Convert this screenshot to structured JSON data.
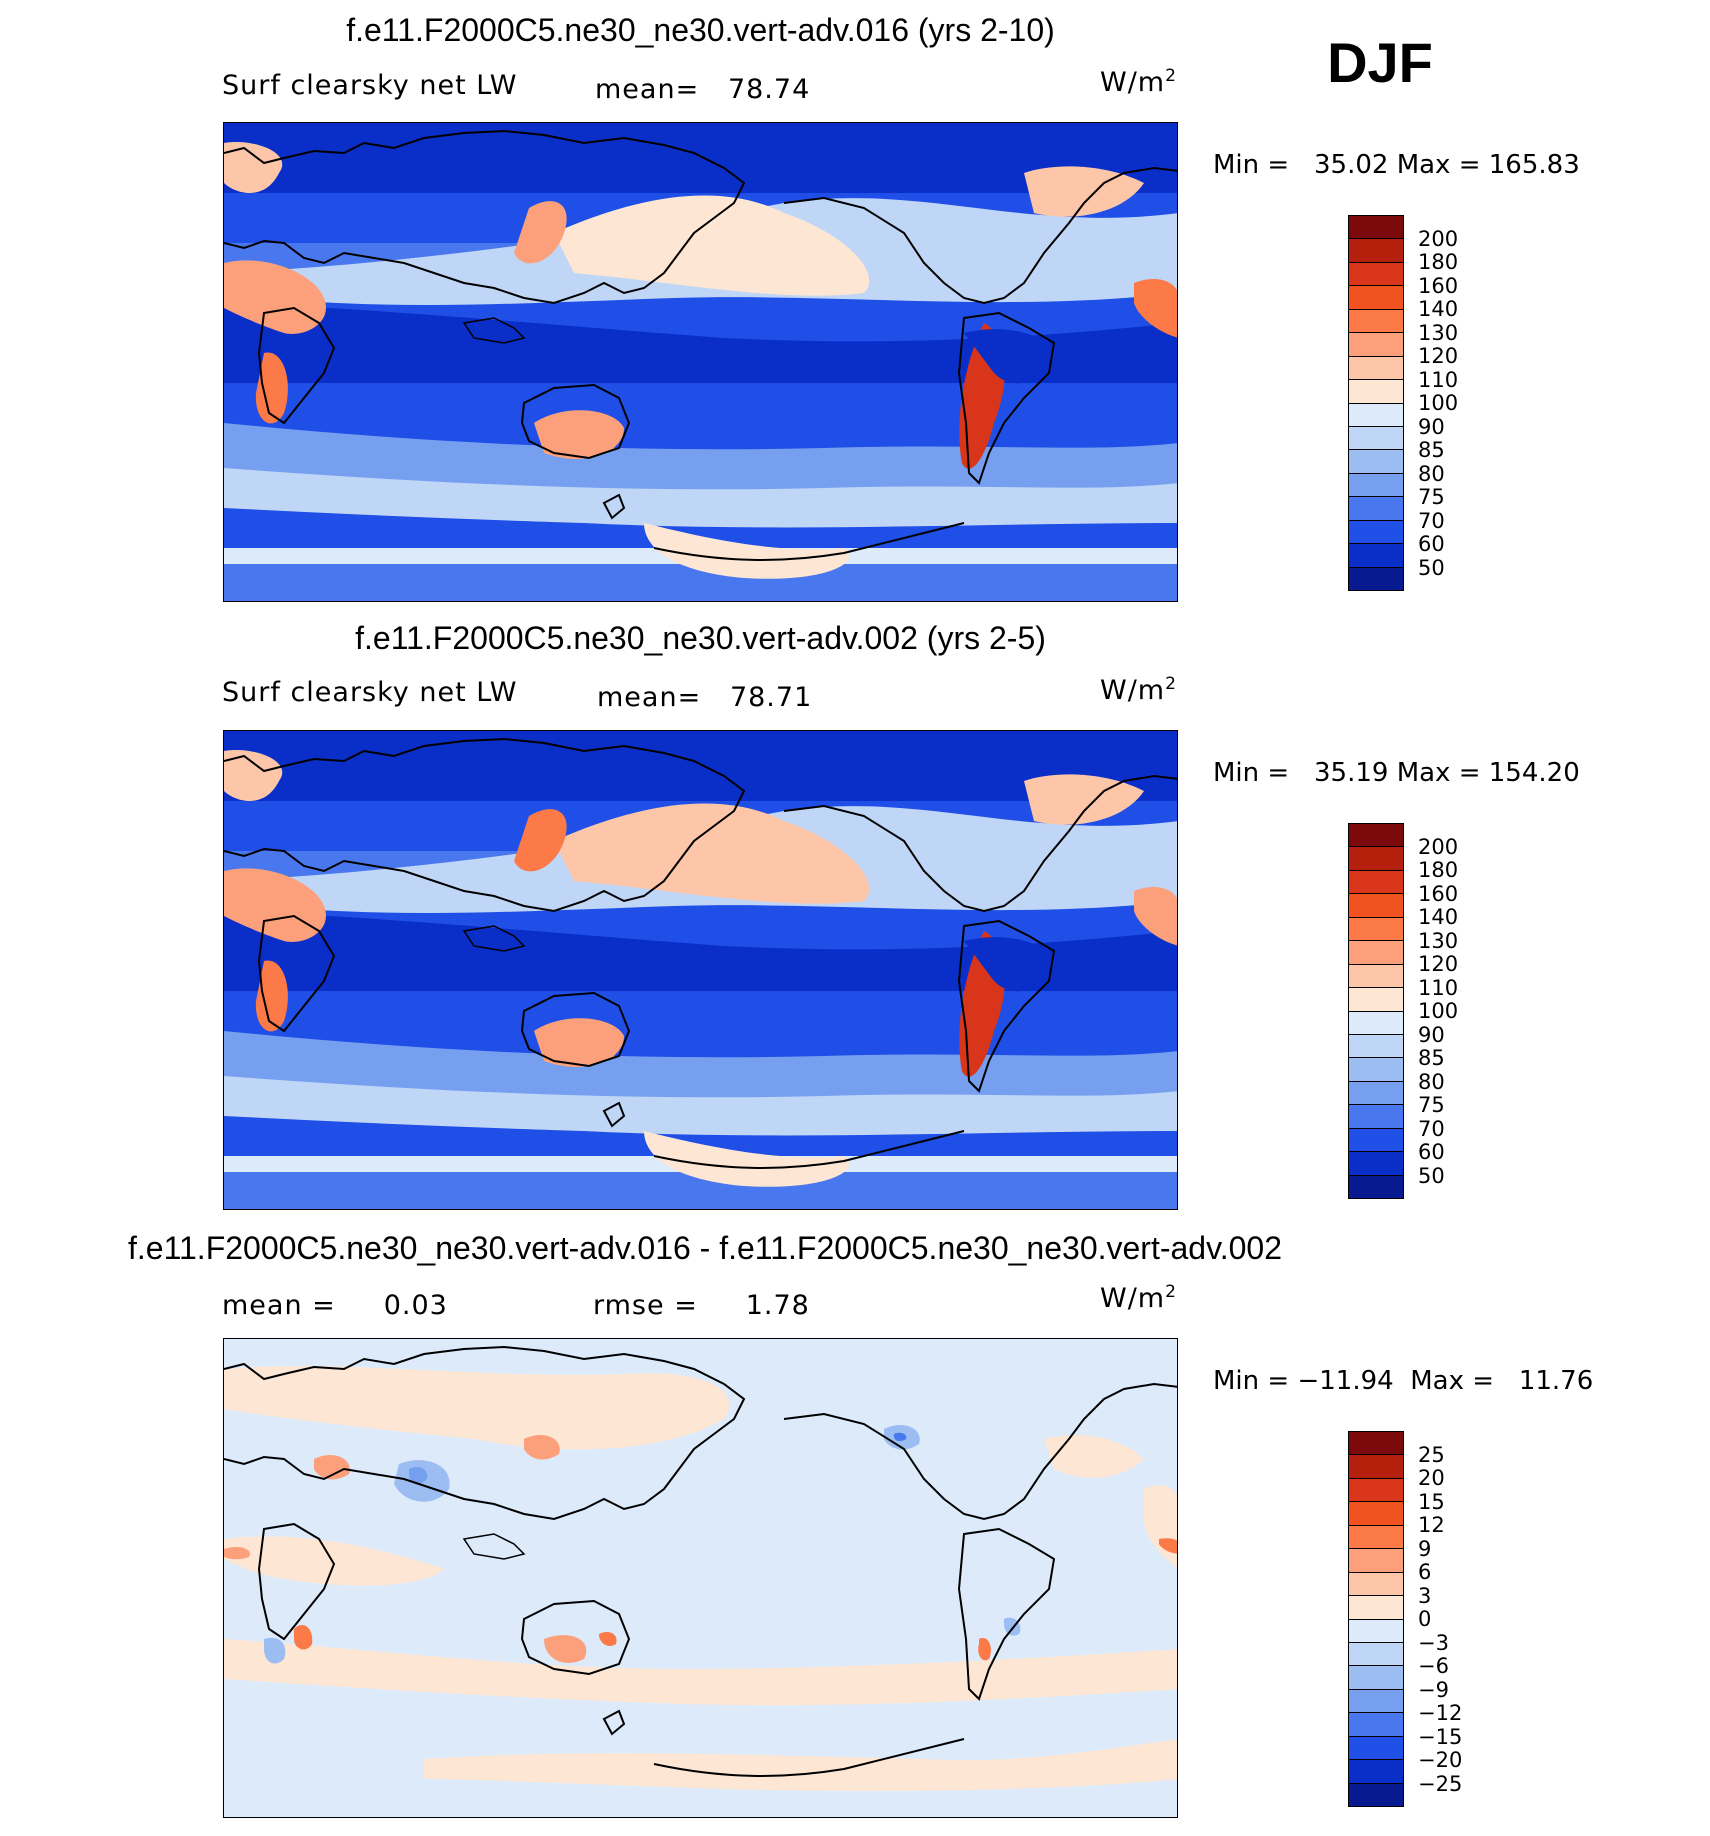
{
  "season": "DJF",
  "panels": [
    {
      "title": "f.e11.F2000C5.ne30_ne30.vert-adv.016 (yrs 2-10)",
      "left_label": "Surf clearsky net LW",
      "stat_label": "mean=",
      "stat_value": "78.74",
      "units_base": "W/m",
      "units_exp": "2",
      "min_label": "Min =",
      "min_value": "35.02",
      "max_label": "Max =",
      "max_value": "165.83",
      "colorbar_ticks": [
        "200",
        "180",
        "160",
        "140",
        "130",
        "120",
        "110",
        "100",
        "90",
        "85",
        "80",
        "75",
        "70",
        "60",
        "50"
      ],
      "colorbar_colors": [
        "#7d0a0a",
        "#b5200c",
        "#d8351a",
        "#f0531f",
        "#fb7a48",
        "#fca07c",
        "#fdc6a9",
        "#fde7d4",
        "#dceafa",
        "#bfd6f7",
        "#9cbdf2",
        "#769ff0",
        "#4977ee",
        "#1f4fe6",
        "#0a2fc8",
        "#081a90"
      ]
    },
    {
      "title": "f.e11.F2000C5.ne30_ne30.vert-adv.002 (yrs 2-5)",
      "left_label": "Surf clearsky net LW",
      "stat_label": "mean=",
      "stat_value": "78.71",
      "units_base": "W/m",
      "units_exp": "2",
      "min_label": "Min =",
      "min_value": "35.19",
      "max_label": "Max =",
      "max_value": "154.20",
      "colorbar_ticks": [
        "200",
        "180",
        "160",
        "140",
        "130",
        "120",
        "110",
        "100",
        "90",
        "85",
        "80",
        "75",
        "70",
        "60",
        "50"
      ],
      "colorbar_colors": [
        "#7d0a0a",
        "#b5200c",
        "#d8351a",
        "#f0531f",
        "#fb7a48",
        "#fca07c",
        "#fdc6a9",
        "#fde7d4",
        "#dceafa",
        "#bfd6f7",
        "#9cbdf2",
        "#769ff0",
        "#4977ee",
        "#1f4fe6",
        "#0a2fc8",
        "#081a90"
      ]
    },
    {
      "title": "f.e11.F2000C5.ne30_ne30.vert-adv.016 - f.e11.F2000C5.ne30_ne30.vert-adv.002",
      "left_label": "mean =",
      "left_value": "0.03",
      "stat_label": "rmse =",
      "stat_value": "1.78",
      "units_base": "W/m",
      "units_exp": "2",
      "min_label": "Min =",
      "min_value": "−11.94",
      "max_label": "Max =",
      "max_value": "11.76",
      "colorbar_ticks": [
        "25",
        "20",
        "15",
        "12",
        "9",
        "6",
        "3",
        "0",
        "−3",
        "−6",
        "−9",
        "−12",
        "−15",
        "−20",
        "−25"
      ],
      "colorbar_colors": [
        "#7d0a0a",
        "#b5200c",
        "#d8351a",
        "#f0531f",
        "#fb7a48",
        "#fca07c",
        "#fdc6a9",
        "#fde7d4",
        "#dceafa",
        "#bfd6f7",
        "#9cbdf2",
        "#769ff0",
        "#4977ee",
        "#1f4fe6",
        "#0a2fc8",
        "#081a90"
      ]
    }
  ],
  "colors": {
    "deep_blue": "#0a2fc8",
    "mid_blue": "#4977ee",
    "light_blue": "#9cbdf2",
    "pale_blue": "#dceafa",
    "peach": "#fdc6a9",
    "orange": "#fb7a48",
    "red": "#d8351a",
    "coast": "#000000"
  }
}
